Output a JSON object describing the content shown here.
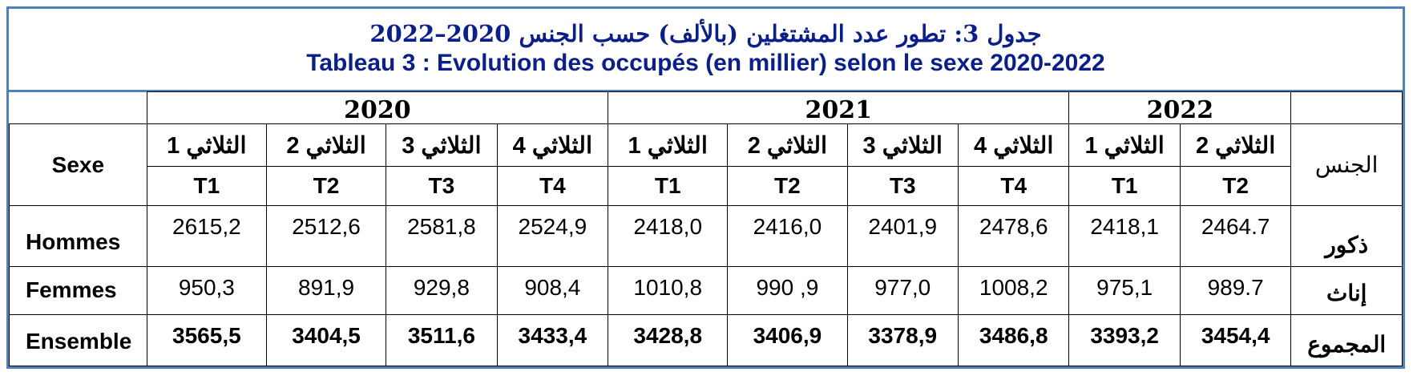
{
  "title": {
    "arabic": "جدول 3: تطور عدد المشتغلين (بالألف) حسب الجنس 2020–2022",
    "french": "Tableau 3 : Evolution des occupés (en millier) selon le sexe 2020-2022"
  },
  "header": {
    "sexe_label": "Sexe",
    "arabic_label": "الجنس",
    "years": [
      "2020",
      "2021",
      "2022"
    ],
    "quarters_ar": [
      "الثلاثي 1",
      "الثلاثي 2",
      "الثلاثي 3",
      "الثلاثي 4",
      "الثلاثي 1",
      "الثلاثي 2",
      "الثلاثي 3",
      "الثلاثي 4",
      "الثلاثي 1",
      "الثلاثي 2"
    ],
    "quarters_fr": [
      "T1",
      "T2",
      "T3",
      "T4",
      "T1",
      "T2",
      "T3",
      "T4",
      "T1",
      "T2"
    ]
  },
  "rows": [
    {
      "label_fr": "Hommes",
      "label_ar": "ذكور",
      "values": [
        "2615,2",
        "2512,6",
        "2581,8",
        "2524,9",
        "2418,0",
        "2416,0",
        "2401,9",
        "2478,6",
        "2418,1",
        "2464.7"
      ]
    },
    {
      "label_fr": "Femmes",
      "label_ar": "إناث",
      "values": [
        "950,3",
        "891,9",
        "929,8",
        "908,4",
        "1010,8",
        "990 ,9",
        "977,0",
        "1008,2",
        "975,1",
        "989.7"
      ]
    },
    {
      "label_fr": "Ensemble",
      "label_ar": "المجموع",
      "values": [
        "3565,5",
        "3404,5",
        "3511,6",
        "3433,4",
        "3428,8",
        "3406,9",
        "3378,9",
        "3486,8",
        "3393,2",
        "3454,4"
      ]
    }
  ]
}
